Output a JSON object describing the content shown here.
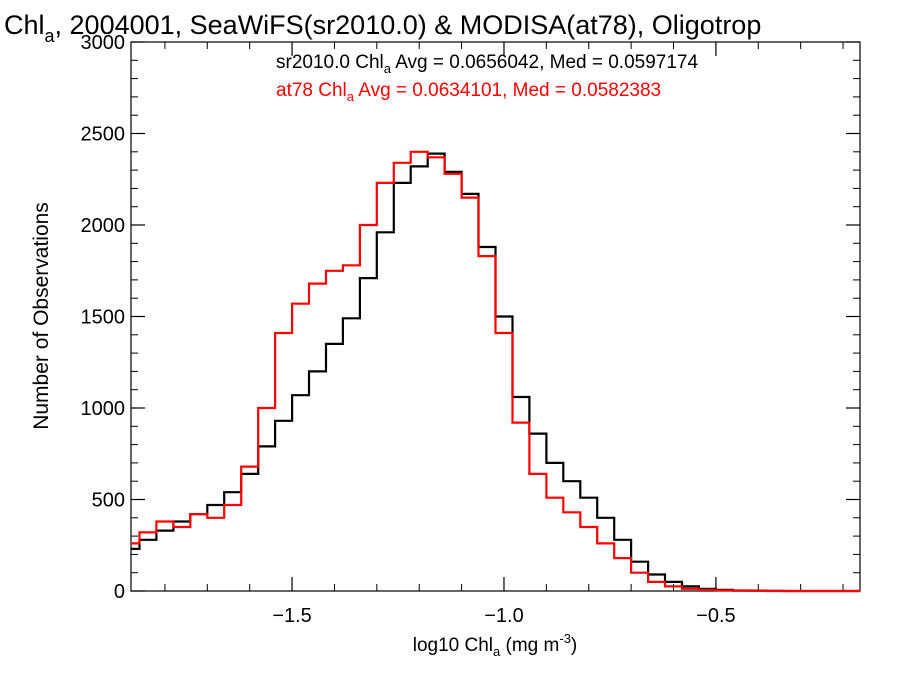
{
  "chart_data": {
    "type": "line",
    "title_parts": [
      "Chl",
      "a",
      ", 2004001, SeaWiFS(sr2010.0) & MODISA(at78), Oligotrop"
    ],
    "xlabel_parts": [
      "log10 Chl",
      "a",
      " (mg m",
      "-3",
      ")"
    ],
    "ylabel": "Number of Observations",
    "xlim": [
      -1.88,
      -0.16
    ],
    "ylim": [
      0,
      3000
    ],
    "x_ticks": [
      -1.5,
      -1.0,
      -0.5
    ],
    "x_tick_labels": [
      "−1.5",
      "−1.0",
      "−0.5"
    ],
    "y_ticks": [
      0,
      500,
      1000,
      1500,
      2000,
      2500,
      3000
    ],
    "y_tick_labels": [
      "0",
      "500",
      "1000",
      "1500",
      "2000",
      "2500",
      "3000"
    ],
    "grid": false,
    "legend_placement": "top",
    "series": [
      {
        "name": "sr2010.0",
        "color": "#000000",
        "stats_parts": [
          "sr2010.0 Chl",
          "a",
          " Avg = 0.0656042, Med = 0.0597174"
        ],
        "x": [
          -1.88,
          -1.84,
          -1.8,
          -1.76,
          -1.72,
          -1.68,
          -1.64,
          -1.6,
          -1.56,
          -1.52,
          -1.48,
          -1.44,
          -1.4,
          -1.36,
          -1.32,
          -1.28,
          -1.24,
          -1.2,
          -1.16,
          -1.12,
          -1.08,
          -1.04,
          -1.0,
          -0.96,
          -0.92,
          -0.88,
          -0.84,
          -0.8,
          -0.76,
          -0.72,
          -0.68,
          -0.64,
          -0.6,
          -0.56,
          -0.52,
          -0.48,
          -0.44,
          -0.4,
          -0.36,
          -0.32,
          -0.28,
          -0.24,
          -0.2,
          -0.16
        ],
        "y": [
          230,
          280,
          330,
          380,
          420,
          470,
          540,
          640,
          790,
          930,
          1070,
          1200,
          1350,
          1490,
          1710,
          1960,
          2230,
          2320,
          2390,
          2290,
          2170,
          1880,
          1500,
          1060,
          860,
          700,
          600,
          510,
          400,
          280,
          160,
          90,
          50,
          25,
          12,
          6,
          3,
          2,
          1,
          0,
          0,
          0,
          0,
          0
        ]
      },
      {
        "name": "at78",
        "color": "#ff0000",
        "stats_parts": [
          "at78 Chl",
          "a",
          " Avg = 0.0634101, Med = 0.0582383"
        ],
        "x": [
          -1.88,
          -1.84,
          -1.8,
          -1.76,
          -1.72,
          -1.68,
          -1.64,
          -1.6,
          -1.56,
          -1.52,
          -1.48,
          -1.44,
          -1.4,
          -1.36,
          -1.32,
          -1.28,
          -1.24,
          -1.2,
          -1.16,
          -1.12,
          -1.08,
          -1.04,
          -1.0,
          -0.96,
          -0.92,
          -0.88,
          -0.84,
          -0.8,
          -0.76,
          -0.72,
          -0.68,
          -0.64,
          -0.6,
          -0.56,
          -0.52,
          -0.48,
          -0.44,
          -0.4,
          -0.36,
          -0.32,
          -0.28,
          -0.24,
          -0.2,
          -0.16
        ],
        "y": [
          260,
          320,
          380,
          350,
          420,
          400,
          470,
          680,
          1000,
          1410,
          1570,
          1680,
          1750,
          1780,
          2000,
          2230,
          2340,
          2400,
          2370,
          2280,
          2150,
          1830,
          1410,
          920,
          640,
          510,
          430,
          350,
          260,
          180,
          100,
          50,
          25,
          12,
          6,
          3,
          2,
          1,
          0,
          0,
          0,
          0,
          0,
          0
        ]
      }
    ]
  }
}
